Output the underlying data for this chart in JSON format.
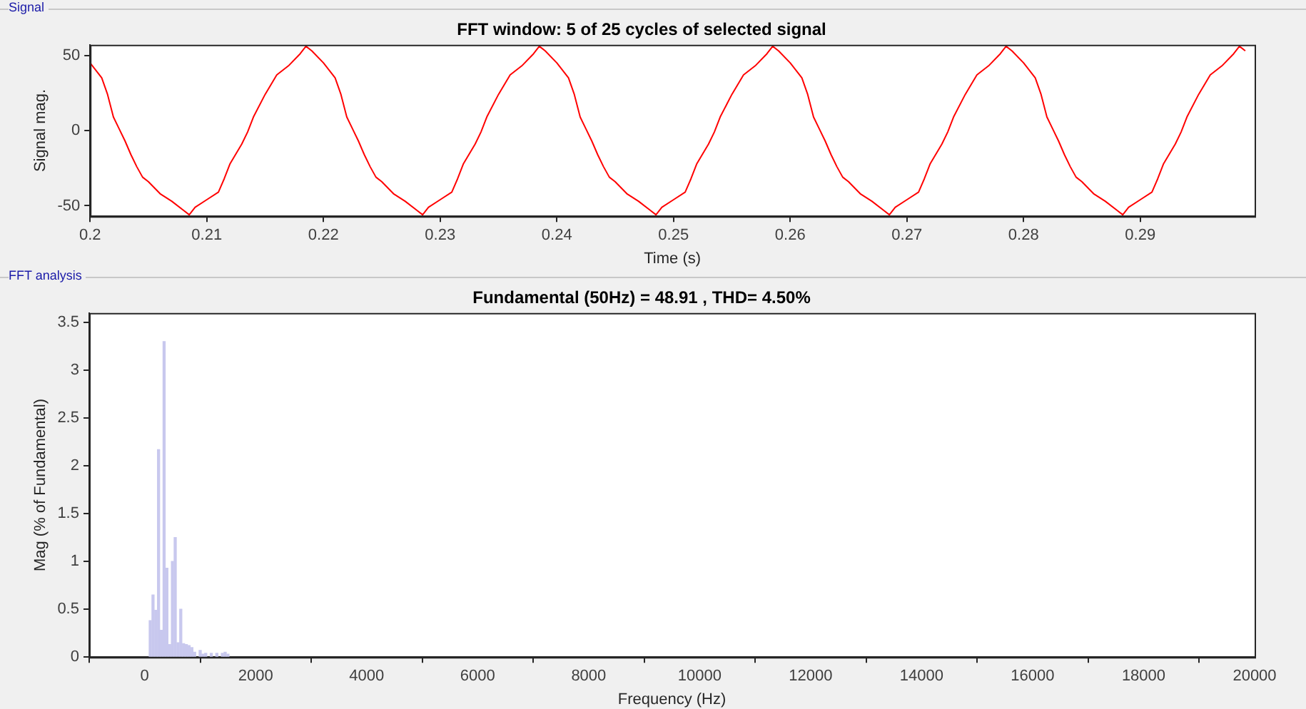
{
  "chart_data": [
    {
      "type": "line",
      "title": "FFT window: 5 of 25 cycles of selected signal",
      "xlabel": "Time (s)",
      "ylabel": "Signal mag.",
      "annotations": [
        "Signal"
      ],
      "x": [
        0.2,
        0.201,
        0.2015,
        0.202,
        0.2025,
        0.203,
        0.2035,
        0.204,
        0.2045,
        0.205,
        0.206,
        0.207,
        0.208,
        0.2085,
        0.209,
        0.21,
        0.211,
        0.2115,
        0.212,
        0.213,
        0.2135,
        0.214,
        0.215,
        0.216,
        0.217,
        0.218,
        0.2185,
        0.219,
        0.22,
        0.221,
        0.2215,
        0.222,
        0.2225,
        0.223,
        0.2235,
        0.224,
        0.2245,
        0.225,
        0.226,
        0.227,
        0.228,
        0.2285,
        0.229,
        0.23,
        0.231,
        0.2315,
        0.232,
        0.233,
        0.2335,
        0.234,
        0.235,
        0.236,
        0.237,
        0.238,
        0.2385,
        0.239,
        0.24,
        0.241,
        0.2415,
        0.242,
        0.2425,
        0.243,
        0.2435,
        0.244,
        0.2445,
        0.245,
        0.246,
        0.247,
        0.248,
        0.2485,
        0.249,
        0.25,
        0.251,
        0.2515,
        0.252,
        0.253,
        0.2535,
        0.254,
        0.255,
        0.256,
        0.257,
        0.258,
        0.2585,
        0.259,
        0.26,
        0.261,
        0.2615,
        0.262,
        0.2625,
        0.263,
        0.2635,
        0.264,
        0.2645,
        0.265,
        0.266,
        0.267,
        0.268,
        0.2685,
        0.269,
        0.27,
        0.271,
        0.2715,
        0.272,
        0.273,
        0.2735,
        0.274,
        0.275,
        0.276,
        0.277,
        0.278,
        0.2785,
        0.279,
        0.28,
        0.281,
        0.2815,
        0.282,
        0.2825,
        0.283,
        0.2835,
        0.284,
        0.2845,
        0.285,
        0.286,
        0.287,
        0.288,
        0.2885,
        0.289,
        0.29,
        0.291,
        0.2915,
        0.292,
        0.293,
        0.2935,
        0.294,
        0.295,
        0.296,
        0.297,
        0.298,
        0.2985,
        0.299
      ],
      "series": [
        {
          "color": "#ff0000",
          "values": [
            45,
            35,
            24,
            9,
            1,
            -7,
            -16,
            -24,
            -31,
            -34,
            -42,
            -47,
            -53,
            -56,
            -51,
            -46,
            -41,
            -32,
            -22,
            -9,
            -1,
            9,
            24,
            37,
            43,
            51,
            56,
            53,
            45,
            35,
            24,
            9,
            1,
            -7,
            -16,
            -24,
            -31,
            -34,
            -42,
            -47,
            -53,
            -56,
            -51,
            -46,
            -41,
            -32,
            -22,
            -9,
            -1,
            9,
            24,
            37,
            43,
            51,
            56,
            53,
            45,
            35,
            24,
            9,
            1,
            -7,
            -16,
            -24,
            -31,
            -34,
            -42,
            -47,
            -53,
            -56,
            -51,
            -46,
            -41,
            -32,
            -22,
            -9,
            -1,
            9,
            24,
            37,
            43,
            51,
            56,
            53,
            45,
            35,
            24,
            9,
            1,
            -7,
            -16,
            -24,
            -31,
            -34,
            -42,
            -47,
            -53,
            -56,
            -51,
            -46,
            -41,
            -32,
            -22,
            -9,
            -1,
            9,
            24,
            37,
            43,
            51,
            56,
            53,
            45,
            35,
            24,
            9,
            1,
            -7,
            -16,
            -24,
            -31,
            -34,
            -42,
            -47,
            -53,
            -56,
            -51,
            -46,
            -41,
            -32,
            -22,
            -9,
            -1,
            9,
            24,
            37,
            43,
            51,
            56,
            53
          ]
        }
      ],
      "xlim": [
        0.2,
        0.2998
      ],
      "xticks": [
        0.2,
        0.21,
        0.22,
        0.23,
        0.24,
        0.25,
        0.26,
        0.27,
        0.28,
        0.29
      ],
      "ylim": [
        -57,
        57
      ],
      "yticks": [
        -50,
        0,
        50
      ],
      "grid": false,
      "legend": false,
      "marker": "none"
    },
    {
      "type": "bar",
      "title": "Fundamental (50Hz) = 48.91 , THD= 4.50%",
      "xlabel": "Frequency (Hz)",
      "ylabel": "Mag (% of Fundamental)",
      "annotations": [
        "FFT analysis"
      ],
      "x": [
        100,
        150,
        200,
        250,
        300,
        350,
        400,
        450,
        500,
        550,
        600,
        650,
        700,
        750,
        800,
        850,
        900,
        1000,
        1050,
        1100,
        1200,
        1300,
        1400,
        1450,
        1500
      ],
      "series": [
        {
          "color": "#c8c8ee",
          "values": [
            0.38,
            0.65,
            0.49,
            2.17,
            0.28,
            3.3,
            0.93,
            0.13,
            1.0,
            1.25,
            0.15,
            0.5,
            0.14,
            0.13,
            0.12,
            0.1,
            0.05,
            0.07,
            0.03,
            0.04,
            0.04,
            0.04,
            0.04,
            0.05,
            0.03
          ]
        }
      ],
      "xlim": [
        -1000,
        20000
      ],
      "xticks": [
        0,
        2000,
        4000,
        6000,
        8000,
        10000,
        12000,
        14000,
        16000,
        18000,
        20000
      ],
      "ylim": [
        0,
        3.6
      ],
      "yticks": [
        0,
        0.5,
        1,
        1.5,
        2,
        2.5,
        3,
        3.5
      ],
      "grid": false,
      "legend": false
    }
  ]
}
